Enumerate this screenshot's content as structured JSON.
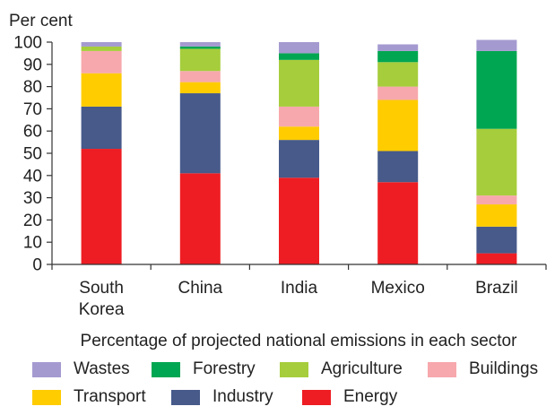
{
  "chart_data": {
    "type": "bar",
    "stacked": true,
    "ylabel": "Per cent",
    "xlabel": "Percentage of projected national emissions in each sector",
    "ylim": [
      0,
      100
    ],
    "yticks": [
      0,
      10,
      20,
      30,
      40,
      50,
      60,
      70,
      80,
      90,
      100
    ],
    "grid": false,
    "legend_position": "bottom",
    "categories": [
      "South Korea",
      "China",
      "India",
      "Mexico",
      "Brazil"
    ],
    "category_lines": [
      [
        "South",
        "Korea"
      ],
      [
        "China"
      ],
      [
        "India"
      ],
      [
        "Mexico"
      ],
      [
        "Brazil"
      ]
    ],
    "series": [
      {
        "name": "Energy",
        "color": "#ee1d23",
        "values": [
          52,
          41,
          39,
          37,
          5
        ]
      },
      {
        "name": "Industry",
        "color": "#475a8a",
        "values": [
          19,
          36,
          17,
          14,
          12
        ]
      },
      {
        "name": "Transport",
        "color": "#ffcc00",
        "values": [
          15,
          5,
          6,
          23,
          10
        ]
      },
      {
        "name": "Buildings",
        "color": "#f7a8ac",
        "values": [
          10,
          5,
          9,
          6,
          4
        ]
      },
      {
        "name": "Agriculture",
        "color": "#a6cd3c",
        "values": [
          2,
          10,
          21,
          11,
          30
        ]
      },
      {
        "name": "Forestry",
        "color": "#00a651",
        "values": [
          0,
          1,
          3,
          5,
          35
        ]
      },
      {
        "name": "Wastes",
        "color": "#a59ad0",
        "values": [
          2,
          2,
          5,
          3,
          5
        ]
      }
    ]
  },
  "legend": {
    "rows": [
      [
        {
          "label": "Wastes",
          "color": "#a59ad0"
        },
        {
          "label": "Forestry",
          "color": "#00a651"
        },
        {
          "label": "Agriculture",
          "color": "#a6cd3c"
        },
        {
          "label": "Buildings",
          "color": "#f7a8ac"
        }
      ],
      [
        {
          "label": "Transport",
          "color": "#ffcc00"
        },
        {
          "label": "Industry",
          "color": "#475a8a"
        },
        {
          "label": "Energy",
          "color": "#ee1d23"
        }
      ]
    ]
  }
}
